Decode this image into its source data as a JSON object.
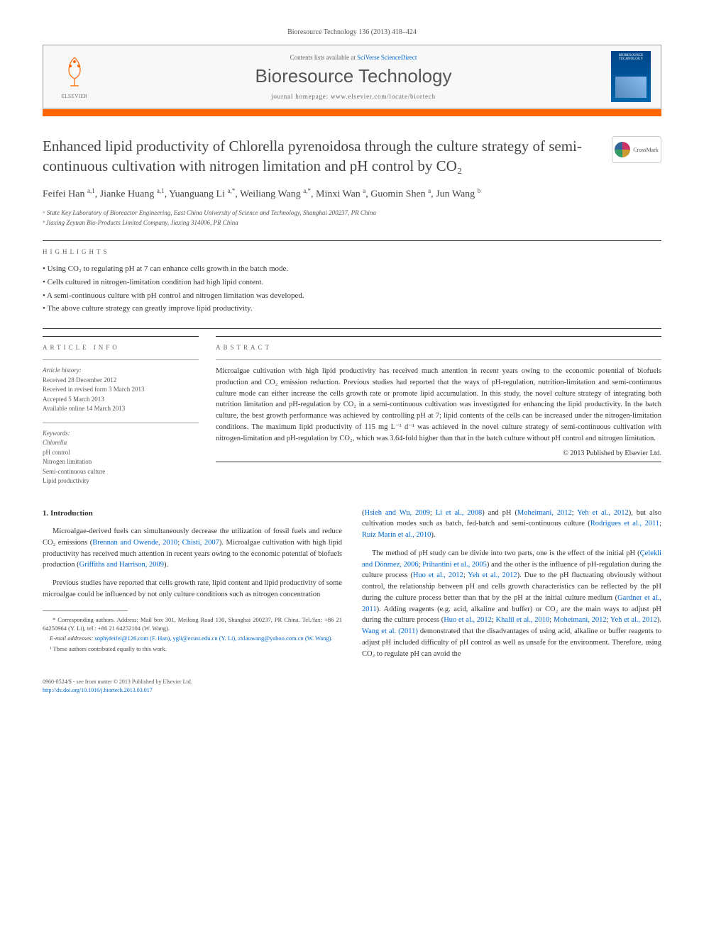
{
  "journal_ref": "Bioresource Technology 136 (2013) 418–424",
  "header": {
    "contents_text": "Contents lists available at ",
    "contents_link": "SciVerse ScienceDirect",
    "journal_name": "Bioresource Technology",
    "homepage_label": "journal homepage: ",
    "homepage_url": "www.elsevier.com/locate/biortech",
    "elsevier_label": "ELSEVIER",
    "cover_title": "BIORESOURCE TECHNOLOGY"
  },
  "crossmark_label": "CrossMark",
  "title": "Enhanced lipid productivity of Chlorella pyrenoidosa through the culture strategy of semi-continuous cultivation with nitrogen limitation and pH control by CO₂",
  "authors_html": "Feifei Han <sup>a,1</sup>, Jianke Huang <sup>a,1</sup>, Yuanguang Li <sup>a,*</sup>, Weiliang Wang <sup>a,*</sup>, Minxi Wan <sup>a</sup>, Guomin Shen <sup>a</sup>, Jun Wang <sup>b</sup>",
  "affiliations": [
    "ᵃ State Key Laboratory of Bioreactor Engineering, East China University of Science and Technology, Shanghai 200237, PR China",
    "ᵇ Jiaxing Zeyuan Bio-Products Limited Company, Jiaxing 314006, PR China"
  ],
  "highlights_label": "HIGHLIGHTS",
  "highlights": [
    "Using CO₂ to regulating pH at 7 can enhance cells growth in the batch mode.",
    "Cells cultured in nitrogen-limitation condition had high lipid content.",
    "A semi-continuous culture with pH control and nitrogen limitation was developed.",
    "The above culture strategy can greatly improve lipid productivity."
  ],
  "article_info_label": "ARTICLE INFO",
  "abstract_label": "ABSTRACT",
  "history": {
    "title": "Article history:",
    "lines": [
      "Received 28 December 2012",
      "Received in revised form 3 March 2013",
      "Accepted 5 March 2013",
      "Available online 14 March 2013"
    ]
  },
  "keywords": {
    "title": "Keywords:",
    "items": [
      "Chlorella",
      "pH control",
      "Nitrogen limitation",
      "Semi-continuous culture",
      "Lipid productivity"
    ]
  },
  "abstract": "Microalgae cultivation with high lipid productivity has received much attention in recent years owing to the economic potential of biofuels production and CO₂ emission reduction. Previous studies had reported that the ways of pH-regulation, nutrition-limitation and semi-continuous culture mode can either increase the cells growth rate or promote lipid accumulation. In this study, the novel culture strategy of integrating both nutrition limitation and pH-regulation by CO₂ in a semi-continuous cultivation was investigated for enhancing the lipid productivity. In the batch culture, the best growth performance was achieved by controlling pH at 7; lipid contents of the cells can be increased under the nitrogen-limitation conditions. The maximum lipid productivity of 115 mg L⁻¹ d⁻¹ was achieved in the novel culture strategy of semi-continuous cultivation with nitrogen-limitation and pH-regulation by CO₂, which was 3.64-fold higher than that in the batch culture without pH control and nitrogen limitation.",
  "copyright": "© 2013 Published by Elsevier Ltd.",
  "intro_heading": "1. Introduction",
  "body_left": [
    {
      "text": "Microalgae-derived fuels can simultaneously decrease the utilization of fossil fuels and reduce CO₂ emissions (",
      "refs": [
        "Brennan and Owende, 2010",
        "Chisti, 2007"
      ],
      "tail": "). Microalgae cultivation with high lipid productivity has received much attention in recent years owing to the economic potential of biofuels production (",
      "refs2": [
        "Griffiths and Harrison, 2009"
      ],
      "tail2": ")."
    },
    {
      "text": "Previous studies have reported that cells growth rate, lipid content and lipid productivity of some microalgae could be influenced by not only culture conditions such as nitrogen concentration"
    }
  ],
  "body_right": [
    {
      "pre": "(",
      "refs": [
        "Hsieh and Wu, 2009",
        "Li et al., 2008"
      ],
      "mid": ") and pH (",
      "refs2": [
        "Moheimani, 2012",
        "Yeh et al., 2012"
      ],
      "mid2": "), but also cultivation modes such as batch, fed-batch and semi-continuous culture (",
      "refs3": [
        "Rodrigues et al., 2011",
        "Ruiz Marín et al., 2010"
      ],
      "tail": ")."
    },
    {
      "text": "The method of pH study can be divide into two parts, one is the effect of the initial pH (",
      "refs": [
        "Çelekli and Dönmez, 2006",
        "Prihantini et al., 2005"
      ],
      "mid": ") and the other is the influence of pH-regulation during the culture process (",
      "refs2": [
        "Huo et al., 2012",
        "Yeh et al., 2012"
      ],
      "mid2": "). Due to the pH fluctuating obviously without control, the relationship between pH and cells growth characteristics can be reflected by the pH during the culture process better than that by the pH at the initial culture medium (",
      "refs3": [
        "Gardner et al., 2011"
      ],
      "mid3": "). Adding reagents (e.g. acid, alkaline and buffer) or CO₂ are the main ways to adjust pH during the culture process (",
      "refs4": [
        "Huo et al., 2012",
        "Khalil et al., 2010",
        "Moheimani, 2012",
        "Yeh et al., 2012"
      ],
      "mid4": "). ",
      "refs5": [
        "Wang et al. (2011)"
      ],
      "tail": " demonstrated that the disadvantages of using acid, alkaline or buffer reagents to adjust pH included difficulty of pH control as well as unsafe for the environment. Therefore, using CO₂ to regulate pH can avoid the"
    }
  ],
  "footnotes": {
    "corr": "* Corresponding authors. Address: Mail box 301, Meilong Road 130, Shanghai 200237, PR China. Tel./fax: +86 21 64250964 (Y. Li), tel.: +86 21 64252104 (W. Wang).",
    "emails_label": "E-mail addresses: ",
    "emails": "sophyfeifei@126.com (F. Han), ygli@ecust.edu.cn (Y. Li), zxlaowang@yahoo.com.cn (W. Wang).",
    "equal": "¹ These authors contributed equally to this work."
  },
  "page_bottom": {
    "issn": "0960-8524/$ - see front matter © 2013 Published by Elsevier Ltd.",
    "doi": "http://dx.doi.org/10.1016/j.biortech.2013.03.017"
  },
  "colors": {
    "orange": "#ff6600",
    "link": "#0066cc",
    "text": "#333333"
  }
}
